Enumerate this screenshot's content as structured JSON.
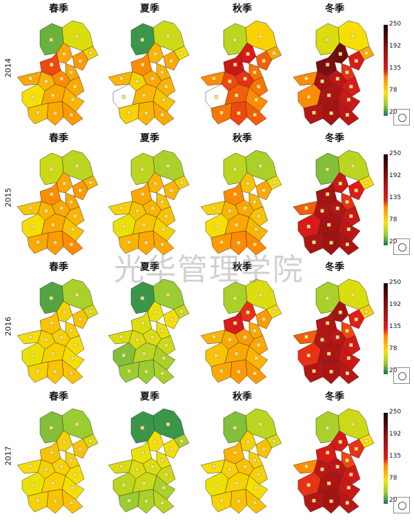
{
  "seasons": [
    "春季",
    "夏季",
    "秋季",
    "冬季"
  ],
  "years": [
    "2014",
    "2015",
    "2016",
    "2017"
  ],
  "colorbar": {
    "ticks": [
      "250",
      "192",
      "135",
      "78",
      "20"
    ],
    "min": 20,
    "max": 250,
    "colors": {
      "20": "#0d7a55",
      "50": "#9acd32",
      "78": "#f5e400",
      "110": "#ff8c00",
      "135": "#e21a1a",
      "192": "#8b1010",
      "250": "#1a0000"
    }
  },
  "legend_icon": "compass-icon",
  "missing_color": "#ffffff",
  "watermark": "光华管理学院",
  "region_values": [
    [
      [
        40,
        70,
        85,
        100,
        105,
        100,
        125,
        100,
        95,
        110,
        100,
        80,
        100,
        95,
        90,
        100,
        105
      ],
      [
        30,
        65,
        80,
        95,
        100,
        95,
        110,
        95,
        85,
        100,
        95,
        null,
        95,
        90,
        85,
        95,
        100
      ],
      [
        60,
        85,
        100,
        140,
        120,
        115,
        150,
        110,
        125,
        130,
        115,
        null,
        120,
        110,
        115,
        125,
        120
      ],
      [
        70,
        80,
        100,
        205,
        140,
        130,
        200,
        110,
        175,
        160,
        140,
        110,
        170,
        150,
        165,
        175,
        160
      ]
    ],
    [
      [
        65,
        60,
        95,
        100,
        105,
        100,
        110,
        90,
        95,
        100,
        95,
        80,
        100,
        90,
        100,
        105,
        110
      ],
      [
        60,
        55,
        85,
        95,
        95,
        90,
        100,
        85,
        90,
        95,
        90,
        75,
        90,
        85,
        95,
        100,
        100
      ],
      [
        60,
        55,
        75,
        90,
        100,
        95,
        110,
        85,
        95,
        100,
        90,
        80,
        100,
        95,
        105,
        110,
        110
      ],
      [
        45,
        60,
        80,
        150,
        135,
        130,
        175,
        120,
        170,
        165,
        150,
        140,
        175,
        160,
        170,
        180,
        170
      ]
    ],
    [
      [
        35,
        55,
        70,
        85,
        90,
        85,
        90,
        80,
        85,
        85,
        80,
        75,
        85,
        80,
        85,
        90,
        90
      ],
      [
        30,
        50,
        65,
        75,
        80,
        75,
        70,
        70,
        70,
        70,
        65,
        45,
        60,
        55,
        50,
        50,
        55
      ],
      [
        55,
        70,
        80,
        130,
        105,
        100,
        140,
        95,
        100,
        105,
        100,
        90,
        100,
        95,
        100,
        105,
        105
      ],
      [
        55,
        70,
        85,
        175,
        135,
        125,
        165,
        120,
        165,
        160,
        145,
        130,
        170,
        150,
        165,
        170,
        160
      ]
    ],
    [
      [
        45,
        50,
        70,
        85,
        90,
        85,
        90,
        80,
        85,
        85,
        80,
        75,
        85,
        80,
        85,
        90,
        90
      ],
      [
        30,
        30,
        55,
        80,
        80,
        75,
        75,
        70,
        70,
        70,
        65,
        60,
        65,
        55,
        50,
        55,
        60
      ],
      [
        45,
        60,
        70,
        85,
        90,
        85,
        95,
        80,
        85,
        90,
        85,
        75,
        85,
        80,
        85,
        90,
        90
      ],
      [
        55,
        65,
        80,
        140,
        130,
        125,
        140,
        110,
        160,
        160,
        145,
        130,
        170,
        150,
        165,
        175,
        160
      ]
    ]
  ]
}
